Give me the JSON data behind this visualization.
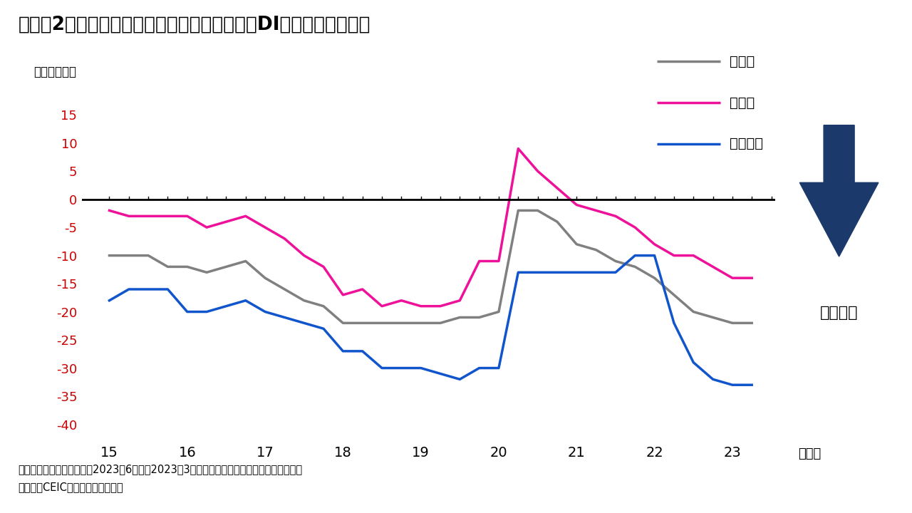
{
  "title": "（図表2）日本：日銀短観による雇用人員判断DI（大企業ベース）",
  "ylabel": "（ポイント）",
  "xlabel_end": "（年）",
  "footnote1": "（注）四半期ごとの計数。2023年6月分は2023年3月における業況判断（先行き）の計数。",
  "footnote2": "（出所）CEICよりインベスコ作成",
  "legend_all": "全産業",
  "legend_mfg": "製造業",
  "legend_nonmfg": "非製造業",
  "arrow_label": "人手不足",
  "x_ticks": [
    15,
    16,
    17,
    18,
    19,
    20,
    21,
    22,
    23
  ],
  "ylim": [
    -43,
    19
  ],
  "yticks": [
    15,
    10,
    5,
    0,
    -5,
    -10,
    -15,
    -20,
    -25,
    -30,
    -35,
    -40
  ],
  "color_all": "#808080",
  "color_mfg": "#EE1199",
  "color_nonmfg": "#1155CC",
  "color_arrow": "#1B3A6B",
  "title_color": "#000000",
  "axis_tick_color": "#CC0000",
  "background_color": "#FFFFFF",
  "x_data": [
    15.0,
    15.25,
    15.5,
    15.75,
    16.0,
    16.25,
    16.5,
    16.75,
    17.0,
    17.25,
    17.5,
    17.75,
    18.0,
    18.25,
    18.5,
    18.75,
    19.0,
    19.25,
    19.5,
    19.75,
    20.0,
    20.25,
    20.5,
    20.75,
    21.0,
    21.25,
    21.5,
    21.75,
    22.0,
    22.25,
    22.5,
    22.75,
    23.0,
    23.25
  ],
  "y_all": [
    -10,
    -10,
    -10,
    -12,
    -12,
    -13,
    -12,
    -11,
    -14,
    -16,
    -18,
    -19,
    -22,
    -22,
    -22,
    -22,
    -22,
    -22,
    -21,
    -21,
    -20,
    -2,
    -2,
    -4,
    -8,
    -9,
    -11,
    -12,
    -14,
    -17,
    -20,
    -21,
    -22,
    -22
  ],
  "y_mfg": [
    -2,
    -3,
    -3,
    -3,
    -3,
    -5,
    -4,
    -3,
    -5,
    -7,
    -10,
    -12,
    -17,
    -16,
    -19,
    -18,
    -19,
    -19,
    -18,
    -11,
    -11,
    9,
    5,
    2,
    -1,
    -2,
    -3,
    -5,
    -8,
    -10,
    -10,
    -12,
    -14,
    -14
  ],
  "y_nonmfg": [
    -18,
    -16,
    -16,
    -16,
    -20,
    -20,
    -19,
    -18,
    -20,
    -21,
    -22,
    -23,
    -27,
    -27,
    -30,
    -30,
    -30,
    -31,
    -32,
    -30,
    -30,
    -13,
    -13,
    -13,
    -13,
    -13,
    -13,
    -10,
    -10,
    -22,
    -29,
    -32,
    -33,
    -33
  ]
}
